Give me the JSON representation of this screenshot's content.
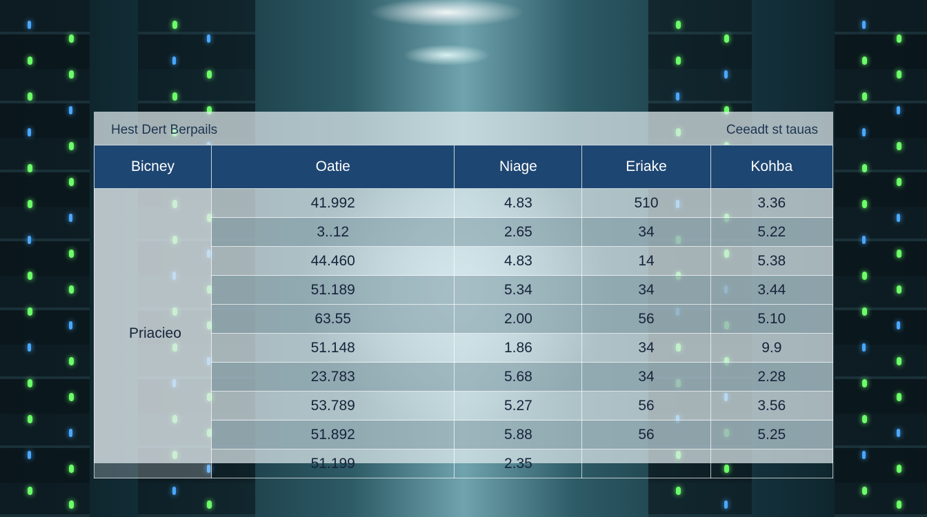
{
  "header": {
    "title": "Hest Dert Berpails",
    "subtitle": "Ceeadt st tauas"
  },
  "table": {
    "columns": [
      "Bicney",
      "Oatie",
      "Niage",
      "Eriake",
      "Kohba"
    ],
    "row_group": "Priacieo",
    "rows": [
      [
        "41.992",
        "4.83",
        "510",
        "3.36"
      ],
      [
        "3..12",
        "2.65",
        "34",
        "5.22"
      ],
      [
        "44.460",
        "4.83",
        "14",
        "5.38"
      ],
      [
        "51.189",
        "5.34",
        "34",
        "3.44"
      ],
      [
        "63.55",
        "2.00",
        "56",
        "5.10"
      ],
      [
        "51.148",
        "1.86",
        "34",
        "9.9"
      ],
      [
        "23.783",
        "5.68",
        "34",
        "2.28"
      ],
      [
        "53.789",
        "5.27",
        "56",
        "3.56"
      ],
      [
        "51.892",
        "5.88",
        "56",
        "5.25"
      ],
      [
        "51.199",
        "2.35"
      ]
    ]
  }
}
